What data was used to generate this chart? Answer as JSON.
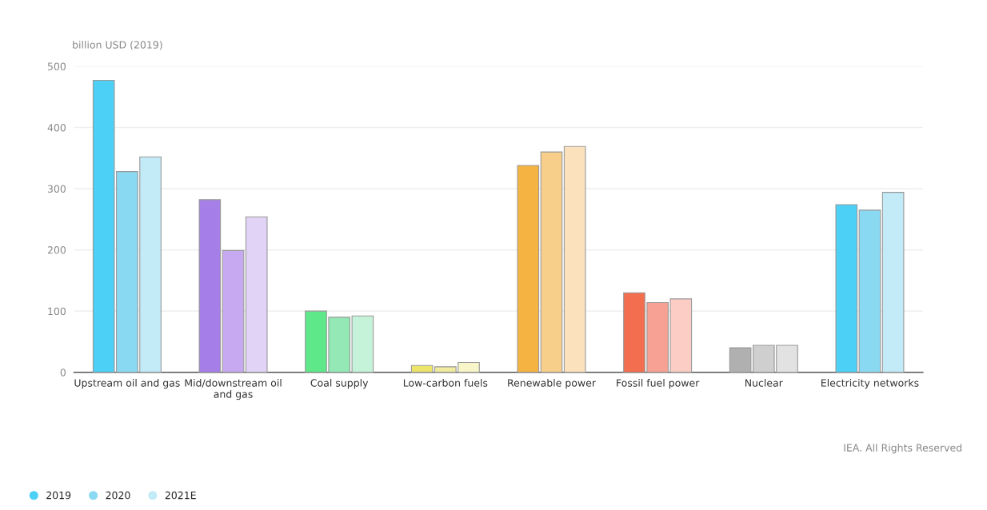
{
  "chart_data": {
    "type": "bar",
    "ylabel": "billion USD (2019)",
    "categories": [
      "Upstream oil and gas",
      "Mid/downstream oil and gas",
      "Coal supply",
      "Low-carbon fuels",
      "Renewable power",
      "Fossil fuel power",
      "Nuclear",
      "Electricity networks"
    ],
    "series": [
      {
        "name": "2019",
        "color": "#4dd0f5",
        "colors": [
          "#4dd0f5",
          "#a57ee8",
          "#5ee88a",
          "#ede46a",
          "#f5b342",
          "#f26e4e",
          "#b0b0b0",
          "#4dd0f5"
        ],
        "values": [
          477,
          282,
          100,
          11,
          338,
          130,
          40,
          274
        ]
      },
      {
        "name": "2020",
        "color": "#8ad9f2",
        "colors": [
          "#8ad9f2",
          "#c6a9f0",
          "#93e8b5",
          "#f0eb9e",
          "#f8cf8a",
          "#f7a194",
          "#cfcfcf",
          "#8ad9f2"
        ],
        "values": [
          328,
          199,
          90,
          9,
          360,
          114,
          44,
          265
        ]
      },
      {
        "name": "2021E",
        "color": "#c2ebf7",
        "colors": [
          "#c2ebf7",
          "#e0d3f5",
          "#c5f3da",
          "#f8f6c8",
          "#fbe2bd",
          "#fbcdc5",
          "#e2e2e2",
          "#c2ebf7"
        ],
        "values": [
          352,
          254,
          92,
          16,
          369,
          120,
          44,
          294
        ]
      }
    ],
    "ylim": [
      0,
      500
    ],
    "yticks": [
      0,
      100,
      200,
      300,
      400,
      500
    ],
    "grid": "y",
    "legend": "bottom left",
    "annotations": [
      "IEA. All Rights Reserved"
    ]
  }
}
